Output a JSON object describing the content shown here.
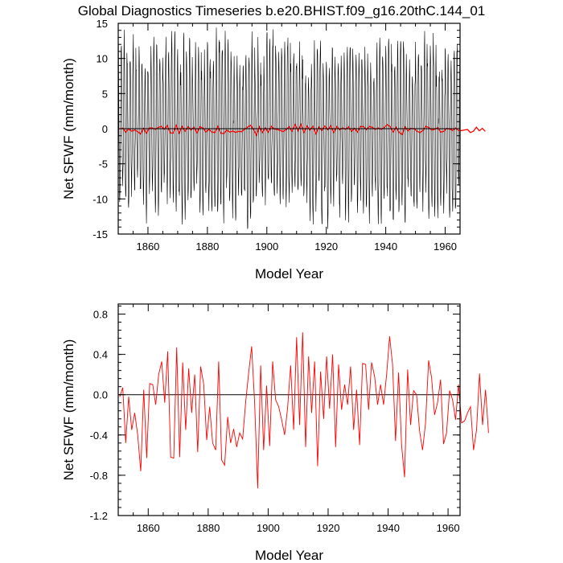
{
  "title": "Global Diagnostics Timeseries b.e20.BHIST.f09_g16.20thC.144_01",
  "colors": {
    "monthly": "#000000",
    "annual": "#ff0000",
    "zero_line": "#000000",
    "axes": "#000000"
  },
  "chart_data": [
    {
      "type": "line",
      "xlabel": "Model Year",
      "ylabel": "Net SFWF (mm/month)",
      "xlim": [
        1850,
        1965
      ],
      "ylim": [
        -15,
        15
      ],
      "xticks": [
        "1860",
        "1880",
        "1900",
        "1920",
        "1940",
        "1960"
      ],
      "yticks": [
        "15",
        "10",
        "5",
        "0",
        "-5",
        "-10",
        "-15"
      ],
      "reference_line": 0,
      "series": [
        {
          "kind": "monthly",
          "color": "#000000",
          "years": [
            1850,
            1965
          ],
          "seasonal_amplitude": 9.5,
          "peak_range": [
            7,
            13.5
          ],
          "trough_range": [
            -13,
            -7
          ]
        },
        {
          "kind": "annual",
          "color": "#ff0000",
          "values_ref": "annual_values"
        }
      ]
    },
    {
      "type": "line",
      "xlabel": "Model Year",
      "ylabel": "Net SFWF (mm/month)",
      "xlim": [
        1850,
        1964
      ],
      "ylim": [
        -1.2,
        0.9
      ],
      "xticks": [
        "1860",
        "1880",
        "1900",
        "1920",
        "1940",
        "1960"
      ],
      "yticks": [
        "0.8",
        "0.4",
        "0.0",
        "-0.4",
        "-0.8",
        "-1.2"
      ],
      "reference_line": 0,
      "series": [
        {
          "kind": "annual",
          "color": "#ff0000",
          "x_start": 1850,
          "values": [
            -0.02,
            0.07,
            -0.48,
            -0.02,
            -0.35,
            -0.18,
            -0.4,
            -0.76,
            0.05,
            -0.63,
            0.11,
            0.1,
            -0.1,
            0.2,
            0.33,
            -0.08,
            0.43,
            -0.62,
            -0.63,
            0.47,
            -0.62,
            0.32,
            -0.35,
            0.26,
            -0.18,
            0.2,
            -0.57,
            0.28,
            0.1,
            -0.45,
            -0.12,
            -0.48,
            -0.55,
            0.33,
            -0.65,
            -0.7,
            -0.22,
            -0.48,
            -0.34,
            -0.52,
            -0.38,
            -0.44,
            -0.08,
            0.22,
            0.48,
            -0.08,
            -0.93,
            0.29,
            -0.55,
            0.09,
            -0.51,
            0.33,
            -0.05,
            -0.12,
            -0.25,
            -0.4,
            -0.13,
            0.29,
            -0.35,
            0.57,
            -0.3,
            0.62,
            -0.52,
            0.38,
            -0.18,
            0.33,
            -0.71,
            0.23,
            -0.24,
            0.38,
            -0.14,
            0.4,
            -0.52,
            0.3,
            -0.15,
            0.1,
            -0.1,
            0.28,
            -0.35,
            0.05,
            -0.5,
            0.31,
            0.3,
            -0.15,
            0.32,
            0.18,
            -0.1,
            0.1,
            -0.1,
            0.2,
            0.58,
            0.3,
            -0.46,
            0.22,
            -0.5,
            -0.82,
            0.25,
            -0.3,
            0.04,
            0.0,
            -0.36,
            -0.55,
            -0.28,
            0.34,
            0.17,
            -0.2,
            -0.08,
            0.15,
            -0.49,
            -0.38,
            0.04,
            -0.05,
            -0.25,
            0.1,
            -0.28,
            -0.26,
            -0.18,
            -0.12,
            -0.55,
            -0.35,
            0.21,
            -0.3,
            0.05,
            -0.38
          ]
        }
      ]
    }
  ]
}
